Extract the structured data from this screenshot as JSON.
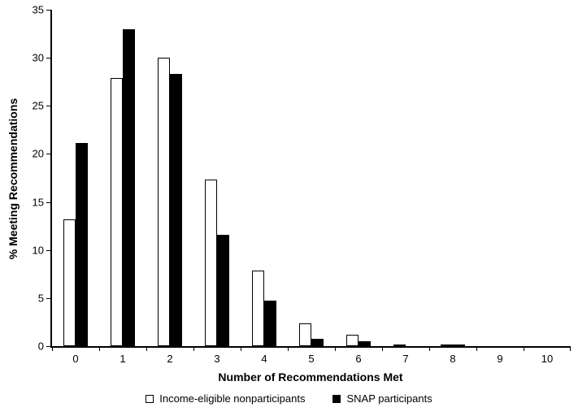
{
  "chart_data": {
    "type": "bar",
    "title": "",
    "xlabel": "Number of Recommendations Met",
    "ylabel": "% Meeting Recommendations",
    "categories": [
      "0",
      "1",
      "2",
      "3",
      "4",
      "5",
      "6",
      "7",
      "8",
      "9",
      "10"
    ],
    "series": [
      {
        "name": "Income-eligible nonparticipants",
        "fill": "#ffffff",
        "border": "#000000",
        "values": [
          13.2,
          27.9,
          30.0,
          17.3,
          7.9,
          2.4,
          1.2,
          0.2,
          0.2,
          0,
          0
        ]
      },
      {
        "name": "SNAP participants",
        "fill": "#000000",
        "border": "#000000",
        "values": [
          21.1,
          33.0,
          28.3,
          11.6,
          4.7,
          0.8,
          0.5,
          0,
          0.1,
          0,
          0
        ]
      }
    ],
    "ylim": [
      0,
      35
    ],
    "yticks": [
      0,
      5,
      10,
      15,
      20,
      25,
      30,
      35
    ],
    "grid": false,
    "legend_position": "bottom",
    "axis_color": "#000000",
    "background_color": "#ffffff"
  }
}
